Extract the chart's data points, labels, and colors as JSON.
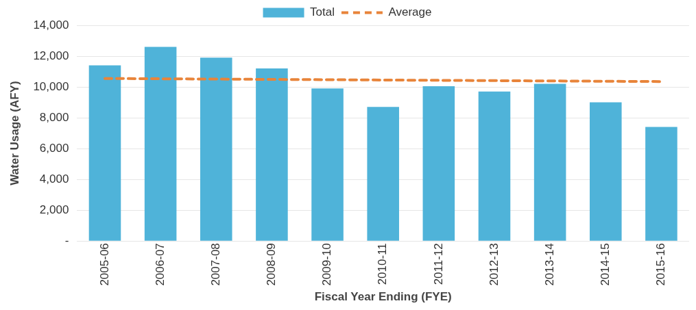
{
  "chart_data": {
    "type": "bar",
    "xlabel": "Fiscal Year Ending (FYE)",
    "ylabel": "Water Usage (AFY)",
    "categories": [
      "2005-06",
      "2006-07",
      "2007-08",
      "2008-09",
      "2009-10",
      "2010-11",
      "2011-12",
      "2012-13",
      "2013-14",
      "2014-15",
      "2015-16"
    ],
    "series": [
      {
        "name": "Total",
        "color": "#4fb3d9",
        "values": [
          11400,
          12600,
          11900,
          11200,
          9900,
          8700,
          10050,
          9700,
          10200,
          9000,
          7400
        ]
      },
      {
        "name": "Average",
        "type": "line",
        "color": "#e8843a",
        "line_style": "dashed",
        "values": [
          10550,
          10530,
          10510,
          10490,
          10470,
          10450,
          10430,
          10410,
          10390,
          10370,
          10350
        ]
      }
    ],
    "ylim": [
      0,
      14000
    ],
    "yticks": [
      {
        "value": 0,
        "label": "-"
      },
      {
        "value": 2000,
        "label": "2,000"
      },
      {
        "value": 4000,
        "label": "4,000"
      },
      {
        "value": 6000,
        "label": "6,000"
      },
      {
        "value": 8000,
        "label": "8,000"
      },
      {
        "value": 10000,
        "label": "10,000"
      },
      {
        "value": 12000,
        "label": "12,000"
      },
      {
        "value": 14000,
        "label": "14,000"
      }
    ],
    "grid": "y",
    "legend": "top"
  }
}
